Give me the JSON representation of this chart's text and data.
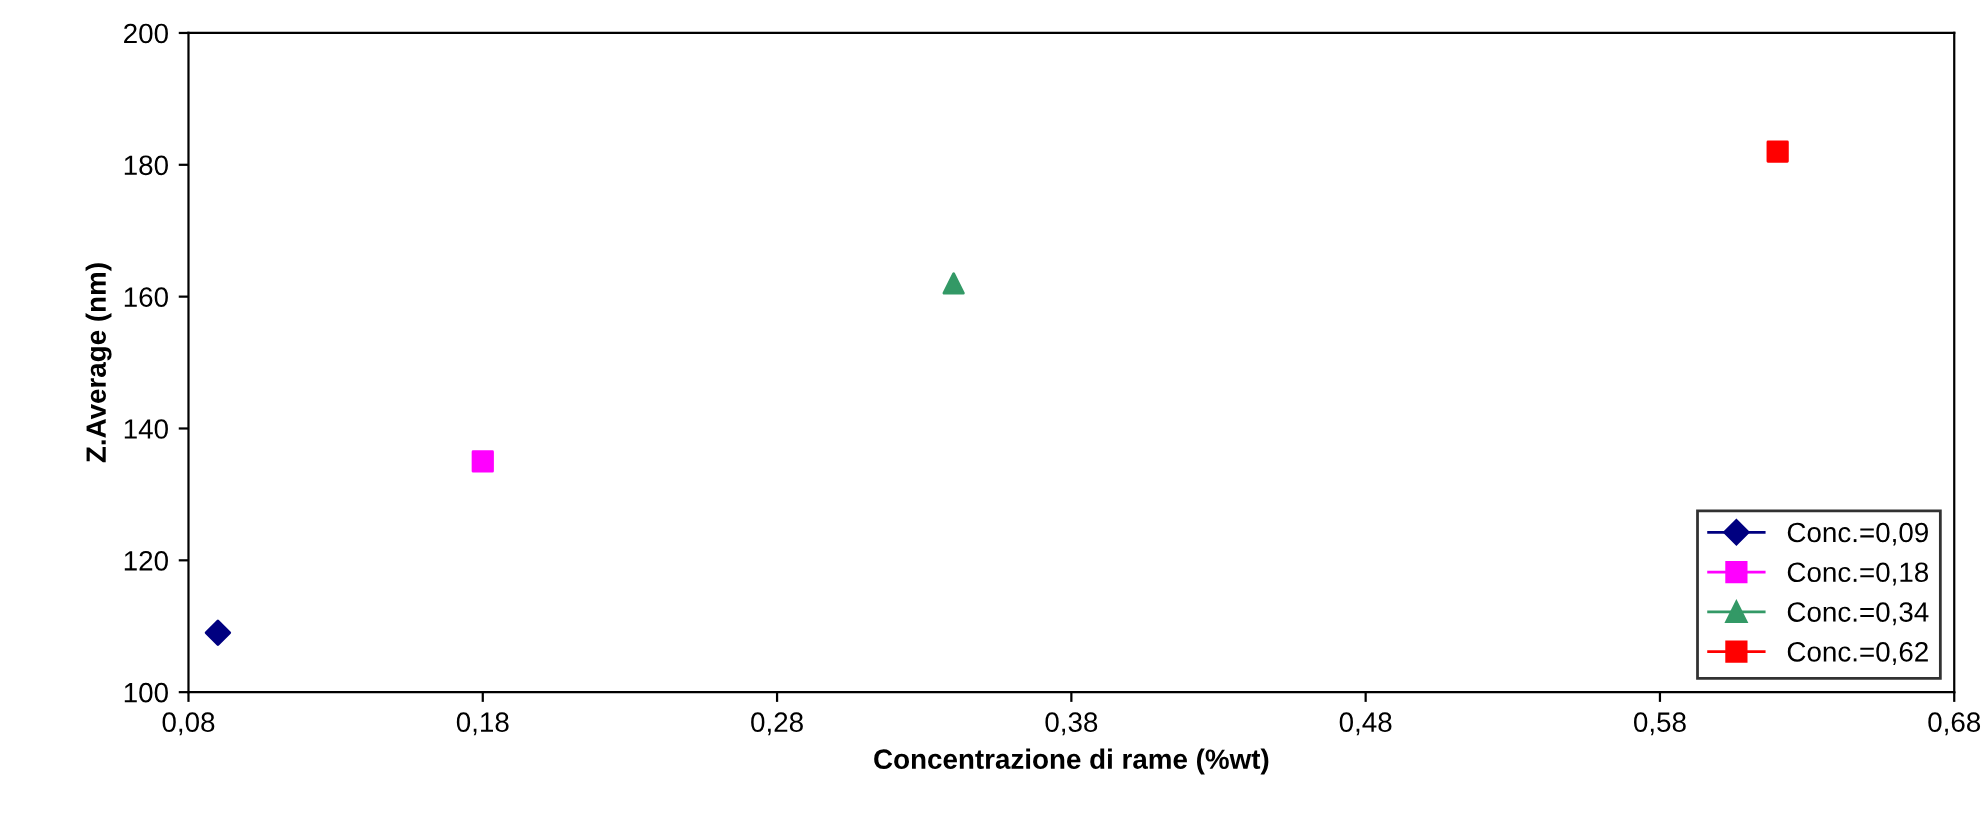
{
  "chart_data": {
    "type": "scatter",
    "xlabel": "Concentrazione di rame (%wt)",
    "ylabel": "Z.Average (nm)",
    "xlim": [
      0.08,
      0.68
    ],
    "xticks": [
      {
        "value": 0.08,
        "label": "0,08"
      },
      {
        "value": 0.18,
        "label": "0,18"
      },
      {
        "value": 0.28,
        "label": "0,28"
      },
      {
        "value": 0.38,
        "label": "0,38"
      },
      {
        "value": 0.48,
        "label": "0,48"
      },
      {
        "value": 0.58,
        "label": "0,58"
      },
      {
        "value": 0.68,
        "label": "0,68"
      }
    ],
    "ylim": [
      100,
      200
    ],
    "yticks": [
      100,
      120,
      140,
      160,
      180,
      200
    ],
    "grid": false,
    "legend": "bottom right",
    "series": [
      {
        "name": "Conc.=0,09",
        "color": "#000080",
        "marker": "diamond",
        "x": [
          0.09
        ],
        "values": [
          109
        ]
      },
      {
        "name": "Conc.=0,18",
        "color": "#ff00ff",
        "marker": "square",
        "x": [
          0.18
        ],
        "values": [
          135
        ]
      },
      {
        "name": "Conc.=0,34",
        "color": "#339966",
        "marker": "triangle",
        "x": [
          0.34
        ],
        "values": [
          162
        ]
      },
      {
        "name": "Conc.=0,62",
        "color": "#ff0000",
        "marker": "square",
        "x": [
          0.62
        ],
        "values": [
          182
        ]
      }
    ]
  }
}
